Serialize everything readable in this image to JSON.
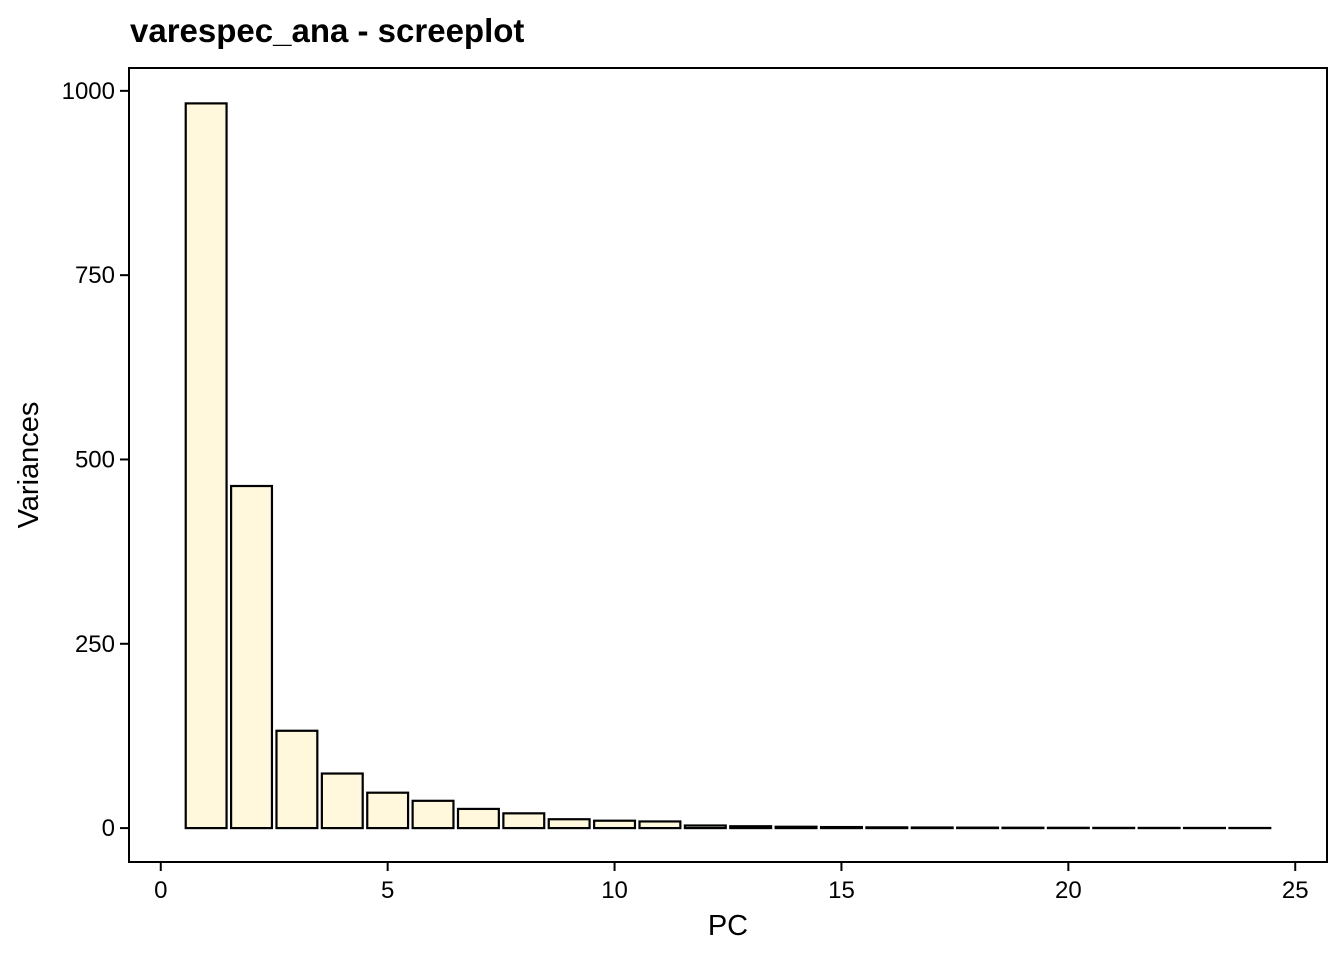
{
  "chart_data": {
    "type": "bar",
    "title": "varespec_ana - screeplot",
    "xlabel": "PC",
    "ylabel": "Variances",
    "x": [
      1,
      2,
      3,
      4,
      5,
      6,
      7,
      8,
      9,
      10,
      11,
      12,
      13,
      14,
      15,
      16,
      17,
      18,
      19,
      20,
      21,
      22,
      23,
      24
    ],
    "values": [
      983,
      464,
      132,
      74,
      48,
      37,
      26,
      20,
      12,
      10,
      9,
      3.5,
      2.5,
      1.8,
      1.4,
      1,
      0.8,
      0.6,
      0.5,
      0.4,
      0.3,
      0.25,
      0.2,
      0.15
    ],
    "xlim": [
      -0.7,
      25.7
    ],
    "ylim": [
      -46,
      1031
    ],
    "xticks": [
      0,
      5,
      10,
      15,
      20,
      25
    ],
    "yticks": [
      0,
      250,
      500,
      750,
      1000
    ],
    "grid": false,
    "legend": "none",
    "bar_fill": "#FFF8DC",
    "bar_stroke": "#000000"
  }
}
